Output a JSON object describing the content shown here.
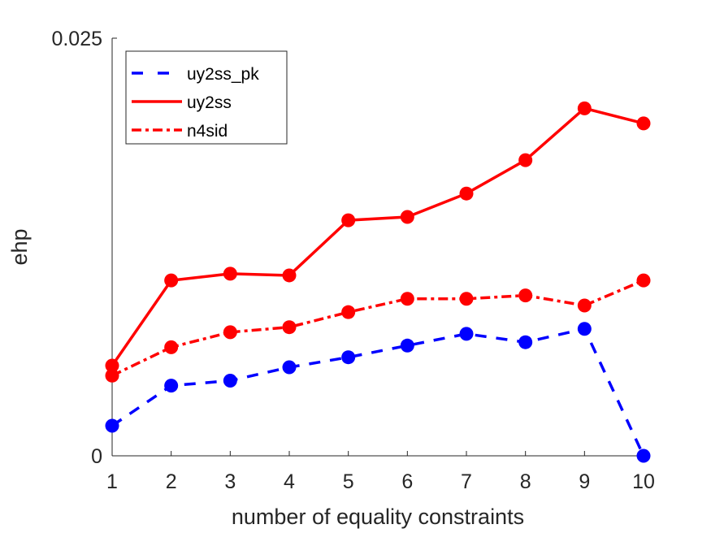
{
  "chart_data": {
    "type": "line",
    "title": "",
    "xlabel": "number of equality constraints",
    "ylabel": "ehp",
    "xlim": [
      1,
      10
    ],
    "ylim": [
      0,
      0.025
    ],
    "x": [
      1,
      2,
      3,
      4,
      5,
      6,
      7,
      8,
      9,
      10
    ],
    "xticks": [
      "1",
      "2",
      "3",
      "4",
      "5",
      "6",
      "7",
      "8",
      "9",
      "10"
    ],
    "yticks": [
      {
        "value": 0,
        "label": "0"
      },
      {
        "value": 0.025,
        "label": "0.025"
      }
    ],
    "legend_position": "top-left",
    "series": [
      {
        "name": "uy2ss_pk",
        "style": "dashed",
        "color": "#0000ff",
        "values": [
          0.0018,
          0.0042,
          0.0045,
          0.0053,
          0.0059,
          0.0066,
          0.0073,
          0.0068,
          0.0076,
          0.0
        ]
      },
      {
        "name": "uy2ss",
        "style": "solid",
        "color": "#ff0000",
        "values": [
          0.0054,
          0.0105,
          0.0109,
          0.0108,
          0.0141,
          0.0143,
          0.0157,
          0.0177,
          0.0208,
          0.0199
        ]
      },
      {
        "name": "n4sid",
        "style": "dashdot",
        "color": "#ff0000",
        "values": [
          0.0048,
          0.0065,
          0.0074,
          0.0077,
          0.0086,
          0.0094,
          0.0094,
          0.0096,
          0.009,
          0.0105
        ]
      }
    ]
  }
}
